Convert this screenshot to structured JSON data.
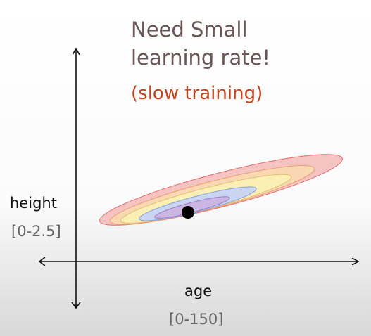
{
  "title": {
    "lines": [
      "Need Small",
      "learning rate!"
    ],
    "subtitle": "(slow training)"
  },
  "y_axis": {
    "label": "height",
    "range": "[0-2.5]"
  },
  "x_axis": {
    "label": "age",
    "range": "[0-150]"
  }
}
